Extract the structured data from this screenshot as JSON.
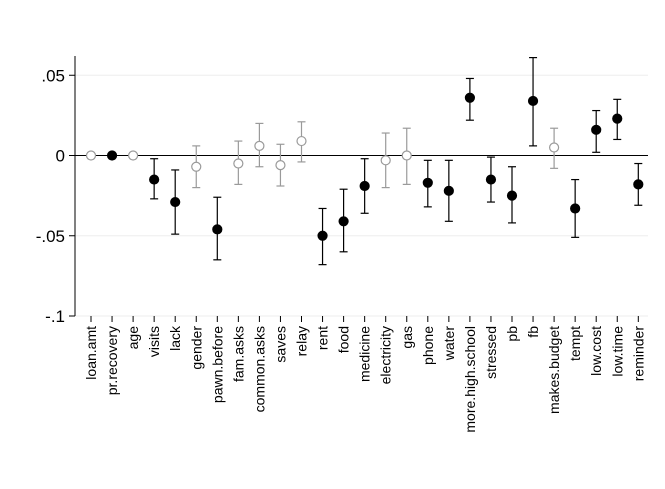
{
  "chart_data": {
    "type": "scatter",
    "title": "",
    "xlabel": "",
    "ylabel": "",
    "ylim": [
      -0.1,
      0.062
    ],
    "yticks": [
      {
        "value": 0.05,
        "label": ".05"
      },
      {
        "value": 0,
        "label": "0"
      },
      {
        "value": -0.05,
        "label": "-.05"
      },
      {
        "value": -0.1,
        "label": "-.1"
      }
    ],
    "grid": true,
    "reference_line_y": 0,
    "colors": {
      "significant": "#000000",
      "not_significant": "#9a9a9a",
      "grid": "#eeeeee"
    },
    "categories": [
      "loan.amt",
      "pr.recovery",
      "age",
      "visits",
      "lack",
      "gender",
      "pawn.before",
      "fam.asks",
      "common.asks",
      "saves",
      "relay",
      "rent",
      "food",
      "medicine",
      "electricity",
      "gas",
      "phone",
      "water",
      "more.high.school",
      "stressed",
      "pb",
      "fb",
      "makes.budget",
      "tempt",
      "low.cost",
      "low.time",
      "reminder"
    ],
    "points": [
      {
        "label": "loan.amt",
        "y": 0.0,
        "lo": null,
        "hi": null,
        "filled": false
      },
      {
        "label": "pr.recovery",
        "y": 0.0,
        "lo": null,
        "hi": null,
        "filled": true
      },
      {
        "label": "age",
        "y": 0.0,
        "lo": null,
        "hi": null,
        "filled": false
      },
      {
        "label": "visits",
        "y": -0.015,
        "lo": -0.027,
        "hi": -0.002,
        "filled": true
      },
      {
        "label": "lack",
        "y": -0.029,
        "lo": -0.049,
        "hi": -0.009,
        "filled": true
      },
      {
        "label": "gender",
        "y": -0.007,
        "lo": -0.02,
        "hi": 0.006,
        "filled": false
      },
      {
        "label": "pawn.before",
        "y": -0.046,
        "lo": -0.065,
        "hi": -0.026,
        "filled": true
      },
      {
        "label": "fam.asks",
        "y": -0.005,
        "lo": -0.018,
        "hi": 0.009,
        "filled": false
      },
      {
        "label": "common.asks",
        "y": 0.006,
        "lo": -0.007,
        "hi": 0.02,
        "filled": false
      },
      {
        "label": "saves",
        "y": -0.006,
        "lo": -0.019,
        "hi": 0.007,
        "filled": false
      },
      {
        "label": "relay",
        "y": 0.009,
        "lo": -0.004,
        "hi": 0.021,
        "filled": false
      },
      {
        "label": "rent",
        "y": -0.05,
        "lo": -0.068,
        "hi": -0.033,
        "filled": true
      },
      {
        "label": "food",
        "y": -0.041,
        "lo": -0.06,
        "hi": -0.021,
        "filled": true
      },
      {
        "label": "medicine",
        "y": -0.019,
        "lo": -0.036,
        "hi": -0.002,
        "filled": true
      },
      {
        "label": "electricity",
        "y": -0.003,
        "lo": -0.02,
        "hi": 0.014,
        "filled": false
      },
      {
        "label": "gas",
        "y": 0.0,
        "lo": -0.018,
        "hi": 0.017,
        "filled": false
      },
      {
        "label": "phone",
        "y": -0.017,
        "lo": -0.032,
        "hi": -0.003,
        "filled": true
      },
      {
        "label": "water",
        "y": -0.022,
        "lo": -0.041,
        "hi": -0.003,
        "filled": true
      },
      {
        "label": "more.high.school",
        "y": 0.036,
        "lo": 0.022,
        "hi": 0.048,
        "filled": true
      },
      {
        "label": "stressed",
        "y": -0.015,
        "lo": -0.029,
        "hi": -0.001,
        "filled": true
      },
      {
        "label": "pb",
        "y": -0.025,
        "lo": -0.042,
        "hi": -0.007,
        "filled": true
      },
      {
        "label": "fb",
        "y": 0.034,
        "lo": 0.006,
        "hi": 0.061,
        "filled": true
      },
      {
        "label": "makes.budget",
        "y": 0.005,
        "lo": -0.008,
        "hi": 0.017,
        "filled": false
      },
      {
        "label": "tempt",
        "y": -0.033,
        "lo": -0.051,
        "hi": -0.015,
        "filled": true
      },
      {
        "label": "low.cost",
        "y": 0.016,
        "lo": 0.002,
        "hi": 0.028,
        "filled": true
      },
      {
        "label": "low.time",
        "y": 0.023,
        "lo": 0.01,
        "hi": 0.035,
        "filled": true
      },
      {
        "label": "reminder",
        "y": -0.018,
        "lo": -0.031,
        "hi": -0.005,
        "filled": true
      }
    ]
  }
}
